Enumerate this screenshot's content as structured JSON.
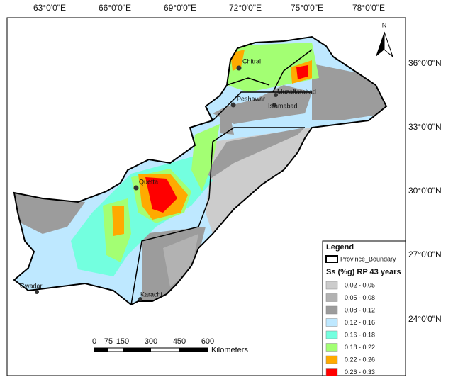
{
  "longitude_labels": [
    "63°0'0\"E",
    "66°0'0\"E",
    "69°0'0\"E",
    "72°0'0\"E",
    "75°0'0\"E",
    "78°0'0\"E"
  ],
  "latitude_labels": [
    "36°0'0\"N",
    "33°0'0\"N",
    "30°0'0\"N",
    "27°0'0\"N",
    "24°0'0\"N"
  ],
  "north_arrow": "N",
  "cities": [
    "Chitral",
    "Peshawar",
    "Muzaffarabad",
    "Islamabad",
    "Quetta",
    "Karachi",
    "Gwadar"
  ],
  "scale_bar": {
    "labels": [
      "0",
      "75",
      "150",
      "300",
      "450",
      "600"
    ],
    "unit": "Kilometers"
  },
  "legend": {
    "title": "Legend",
    "boundary": "Province_Boundary",
    "subtitle": "Ss (%g) RP 43 years",
    "items": [
      {
        "label": "0.02 - 0.05",
        "color": "#cccccc"
      },
      {
        "label": "0.05 - 0.08",
        "color": "#b2b2b2"
      },
      {
        "label": "0.08 - 0.12",
        "color": "#9c9c9c"
      },
      {
        "label": "0.12 - 0.16",
        "color": "#bee8ff"
      },
      {
        "label": "0.16 - 0.18",
        "color": "#73ffdf"
      },
      {
        "label": "0.18 - 0.22",
        "color": "#a3ff73"
      },
      {
        "label": "0.22 - 0.26",
        "color": "#ffaa00"
      },
      {
        "label": "0.26 - 0.33",
        "color": "#ff0000"
      }
    ]
  }
}
